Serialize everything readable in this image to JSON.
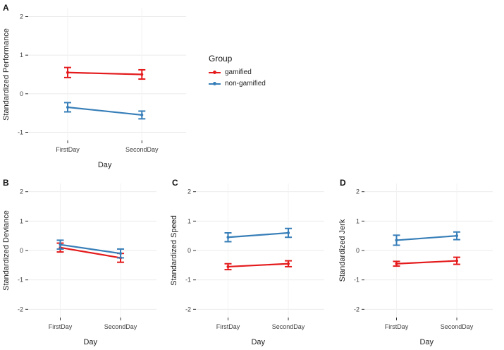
{
  "figure": {
    "background": "#ffffff"
  },
  "legend": {
    "title": "Group",
    "items": [
      {
        "label": "gamified",
        "color": "#e41a1c"
      },
      {
        "label": "non-gamified",
        "color": "#377eb8"
      }
    ]
  },
  "chart_data": [
    {
      "type": "line",
      "panel_label": "A",
      "title": "",
      "xlabel": "Day",
      "ylabel": "Standardized Performance",
      "categories": [
        "FirstDay",
        "SecondDay"
      ],
      "ylim": [
        -1,
        2
      ],
      "yticks": [
        -1,
        0,
        1,
        2
      ],
      "grid": true,
      "legend_position": "right",
      "series": [
        {
          "name": "gamified",
          "color": "#e41a1c",
          "values": [
            0.55,
            0.5
          ],
          "errors": [
            0.13,
            0.12
          ]
        },
        {
          "name": "non-gamified",
          "color": "#377eb8",
          "values": [
            -0.35,
            -0.55
          ],
          "errors": [
            0.12,
            0.1
          ]
        }
      ]
    },
    {
      "type": "line",
      "panel_label": "B",
      "title": "",
      "xlabel": "Day",
      "ylabel": "Standardized Deviance",
      "categories": [
        "FirstDay",
        "SecondDay"
      ],
      "ylim": [
        -2,
        2
      ],
      "yticks": [
        -2,
        -1,
        0,
        1,
        2
      ],
      "grid": true,
      "legend_position": "none",
      "series": [
        {
          "name": "gamified",
          "color": "#e41a1c",
          "values": [
            0.1,
            -0.25
          ],
          "errors": [
            0.15,
            0.15
          ]
        },
        {
          "name": "non-gamified",
          "color": "#377eb8",
          "values": [
            0.2,
            -0.1
          ],
          "errors": [
            0.15,
            0.15
          ]
        }
      ]
    },
    {
      "type": "line",
      "panel_label": "C",
      "title": "",
      "xlabel": "Day",
      "ylabel": "Standardized Speed",
      "categories": [
        "FirstDay",
        "SecondDay"
      ],
      "ylim": [
        -2,
        2
      ],
      "yticks": [
        -2,
        -1,
        0,
        1,
        2
      ],
      "grid": true,
      "legend_position": "none",
      "series": [
        {
          "name": "gamified",
          "color": "#e41a1c",
          "values": [
            -0.55,
            -0.45
          ],
          "errors": [
            0.1,
            0.1
          ]
        },
        {
          "name": "non-gamified",
          "color": "#377eb8",
          "values": [
            0.45,
            0.6
          ],
          "errors": [
            0.15,
            0.15
          ]
        }
      ]
    },
    {
      "type": "line",
      "panel_label": "D",
      "title": "",
      "xlabel": "Day",
      "ylabel": "Standardized Jerk",
      "categories": [
        "FirstDay",
        "SecondDay"
      ],
      "ylim": [
        -2,
        2
      ],
      "yticks": [
        -2,
        -1,
        0,
        1,
        2
      ],
      "grid": true,
      "legend_position": "none",
      "series": [
        {
          "name": "gamified",
          "color": "#e41a1c",
          "values": [
            -0.45,
            -0.35
          ],
          "errors": [
            0.08,
            0.12
          ]
        },
        {
          "name": "non-gamified",
          "color": "#377eb8",
          "values": [
            0.35,
            0.5
          ],
          "errors": [
            0.17,
            0.13
          ]
        }
      ]
    }
  ]
}
